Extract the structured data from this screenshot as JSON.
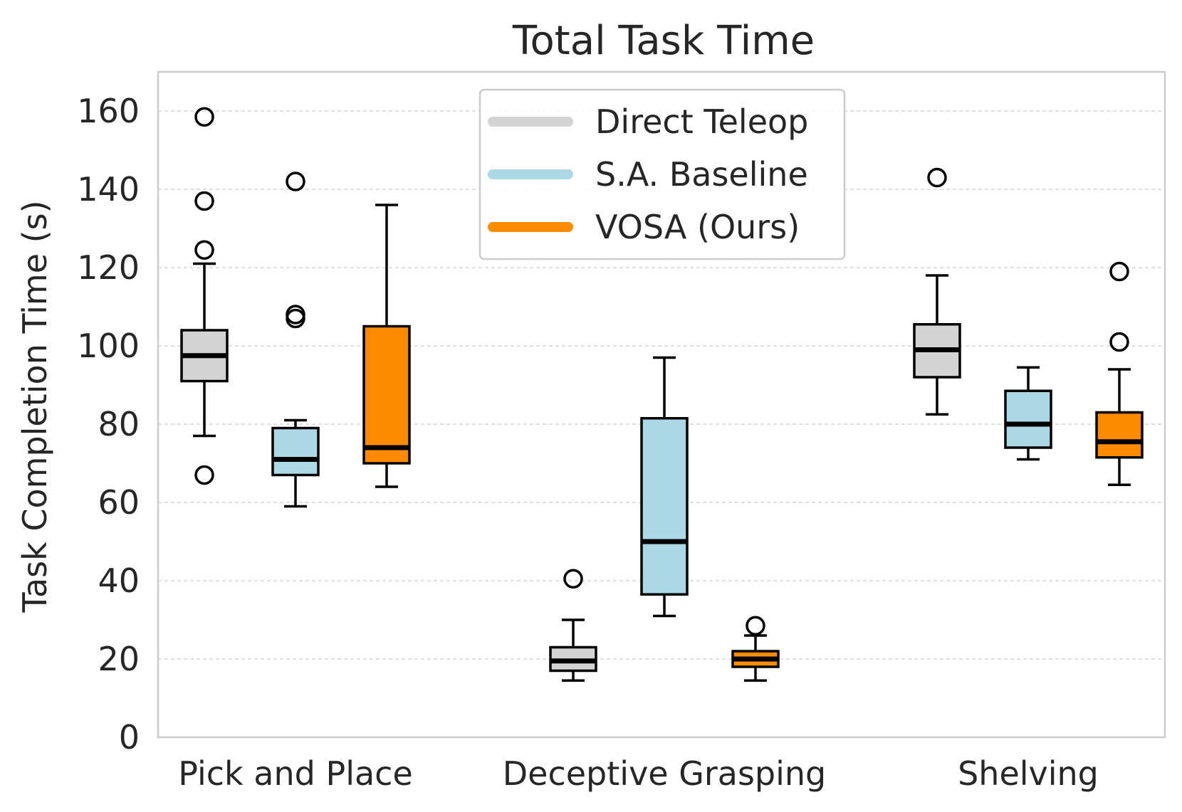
{
  "chart_data": {
    "type": "box",
    "title": "Total Task Time",
    "xlabel": "",
    "ylabel": "Task Completion Time (s)",
    "ylim": [
      0,
      170
    ],
    "yticks": [
      0,
      20,
      40,
      60,
      80,
      100,
      120,
      140,
      160
    ],
    "grid": "horizontal dashed",
    "legend_position": "top-center",
    "categories": [
      "Pick and Place",
      "Deceptive Grasping",
      "Shelving"
    ],
    "series": [
      {
        "name": "Direct Teleop",
        "color": "#d3d3d3",
        "boxes": [
          {
            "whisker_low": 77,
            "q1": 91,
            "median": 97.5,
            "q3": 104,
            "whisker_high": 121,
            "outliers": [
              67,
              124.5,
              137,
              158.5
            ]
          },
          {
            "whisker_low": 14.5,
            "q1": 17,
            "median": 19.5,
            "q3": 23,
            "whisker_high": 30,
            "outliers": [
              40.5
            ]
          },
          {
            "whisker_low": 82.5,
            "q1": 92,
            "median": 99,
            "q3": 105.5,
            "whisker_high": 118,
            "outliers": [
              143
            ]
          }
        ]
      },
      {
        "name": "S.A. Baseline",
        "color": "#add8e6",
        "boxes": [
          {
            "whisker_low": 59,
            "q1": 67,
            "median": 71,
            "q3": 79,
            "whisker_high": 81,
            "outliers": [
              107,
              108,
              142
            ]
          },
          {
            "whisker_low": 31,
            "q1": 36.5,
            "median": 50,
            "q3": 81.5,
            "whisker_high": 97,
            "outliers": []
          },
          {
            "whisker_low": 71,
            "q1": 74,
            "median": 80,
            "q3": 88.5,
            "whisker_high": 94.5,
            "outliers": []
          }
        ]
      },
      {
        "name": "VOSA (Ours)",
        "color": "#ff8c00",
        "boxes": [
          {
            "whisker_low": 64,
            "q1": 70,
            "median": 74,
            "q3": 105,
            "whisker_high": 136,
            "outliers": []
          },
          {
            "whisker_low": 14.5,
            "q1": 18,
            "median": 20,
            "q3": 22,
            "whisker_high": 26,
            "outliers": [
              28.5
            ]
          },
          {
            "whisker_low": 64.5,
            "q1": 71.5,
            "median": 75.5,
            "q3": 83,
            "whisker_high": 94,
            "outliers": [
              101,
              119
            ]
          }
        ]
      }
    ]
  }
}
